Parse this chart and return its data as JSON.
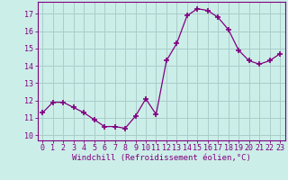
{
  "x": [
    0,
    1,
    2,
    3,
    4,
    5,
    6,
    7,
    8,
    9,
    10,
    11,
    12,
    13,
    14,
    15,
    16,
    17,
    18,
    19,
    20,
    21,
    22,
    23
  ],
  "y": [
    11.3,
    11.9,
    11.9,
    11.6,
    11.3,
    10.9,
    10.5,
    10.5,
    10.4,
    11.1,
    12.1,
    11.2,
    14.3,
    15.3,
    16.9,
    17.3,
    17.2,
    16.8,
    16.1,
    14.9,
    14.3,
    14.1,
    14.3,
    14.7
  ],
  "line_color": "#800080",
  "marker": "+",
  "marker_size": 4,
  "marker_lw": 1.2,
  "bg_color": "#cceee8",
  "grid_color": "#aacccc",
  "xlabel": "Windchill (Refroidissement éolien,°C)",
  "xlabel_fontsize": 6.5,
  "ylabel_ticks": [
    10,
    11,
    12,
    13,
    14,
    15,
    16,
    17
  ],
  "ylim": [
    9.7,
    17.7
  ],
  "xlim": [
    -0.5,
    23.5
  ],
  "xtick_labels": [
    "0",
    "1",
    "2",
    "3",
    "4",
    "5",
    "6",
    "7",
    "8",
    "9",
    "10",
    "11",
    "12",
    "13",
    "14",
    "15",
    "16",
    "17",
    "18",
    "19",
    "20",
    "21",
    "22",
    "23"
  ],
  "tick_color": "#800080",
  "tick_fontsize": 6.0,
  "label_color": "#800080",
  "spine_color": "#800080"
}
